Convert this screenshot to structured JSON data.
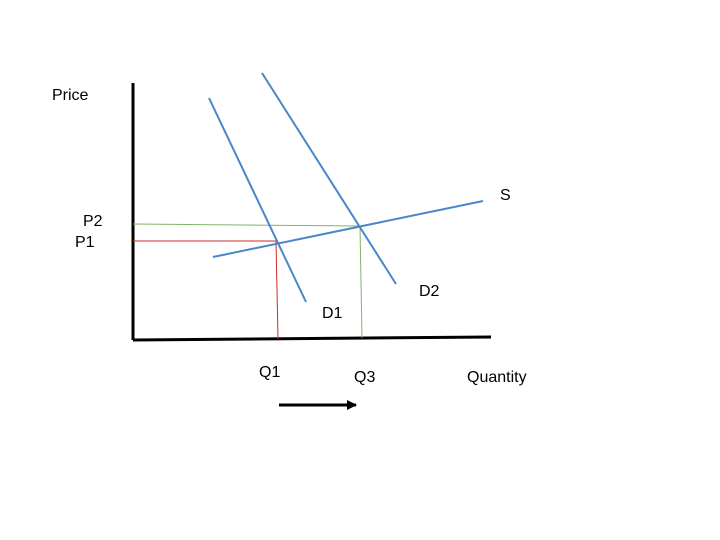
{
  "axes": {
    "y_label": "Price",
    "x_label": "Quantity"
  },
  "price_labels": {
    "p1": "P1",
    "p2": "P2"
  },
  "quantity_labels": {
    "q1": "Q1",
    "q3": "Q3"
  },
  "curves": {
    "supply": "S",
    "demand_initial": "D1",
    "demand_shifted": "D2"
  },
  "colors": {
    "axis": "#000000",
    "curve": "#4a86c8",
    "initial_guide": "#d62728",
    "new_guide": "#7fb36a",
    "arrow": "#000000"
  },
  "arrow": {
    "direction": "right"
  }
}
